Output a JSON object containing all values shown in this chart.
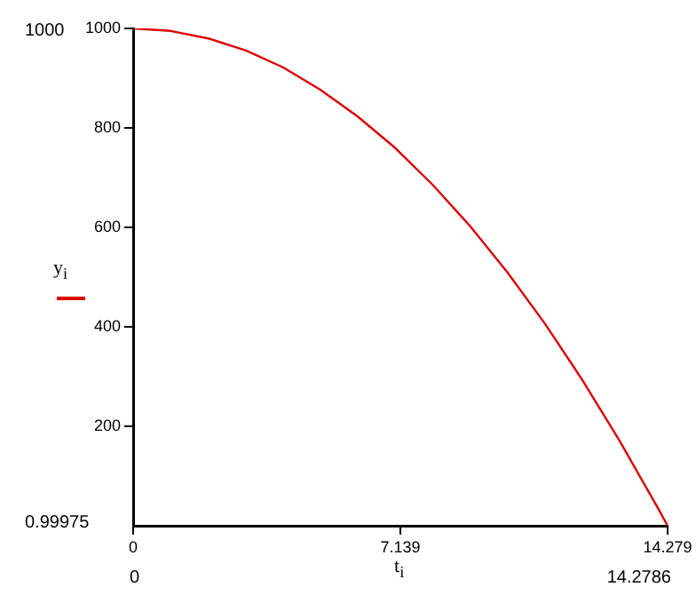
{
  "chart_data": {
    "type": "line",
    "xlabel": "t$_{i}$",
    "ylabel": "y$_{i}$",
    "x": [
      0,
      1,
      2,
      3,
      4,
      5,
      6,
      7,
      8,
      9,
      10,
      11,
      12,
      13,
      14,
      14.2786
    ],
    "series": [
      {
        "color": "#e00000",
        "values": [
          1000,
          995,
          980,
          956,
          922,
          877,
          823,
          760,
          686,
          603,
          510,
          407,
          294,
          171,
          39,
          1
        ]
      }
    ],
    "xlim": [
      0,
      14.2786
    ],
    "xticks": [
      0,
      7.139,
      {
        "value": 14.2786,
        "label": "14.279"
      }
    ],
    "ylim": [
      0.99975,
      1000
    ],
    "yticks": [
      200,
      400,
      600,
      800,
      1000
    ],
    "annotations": [
      "1000",
      "0.99975",
      "0",
      "14.2786"
    ],
    "grid": false,
    "legend": false,
    "marker": "none",
    "line_style": "solid"
  }
}
